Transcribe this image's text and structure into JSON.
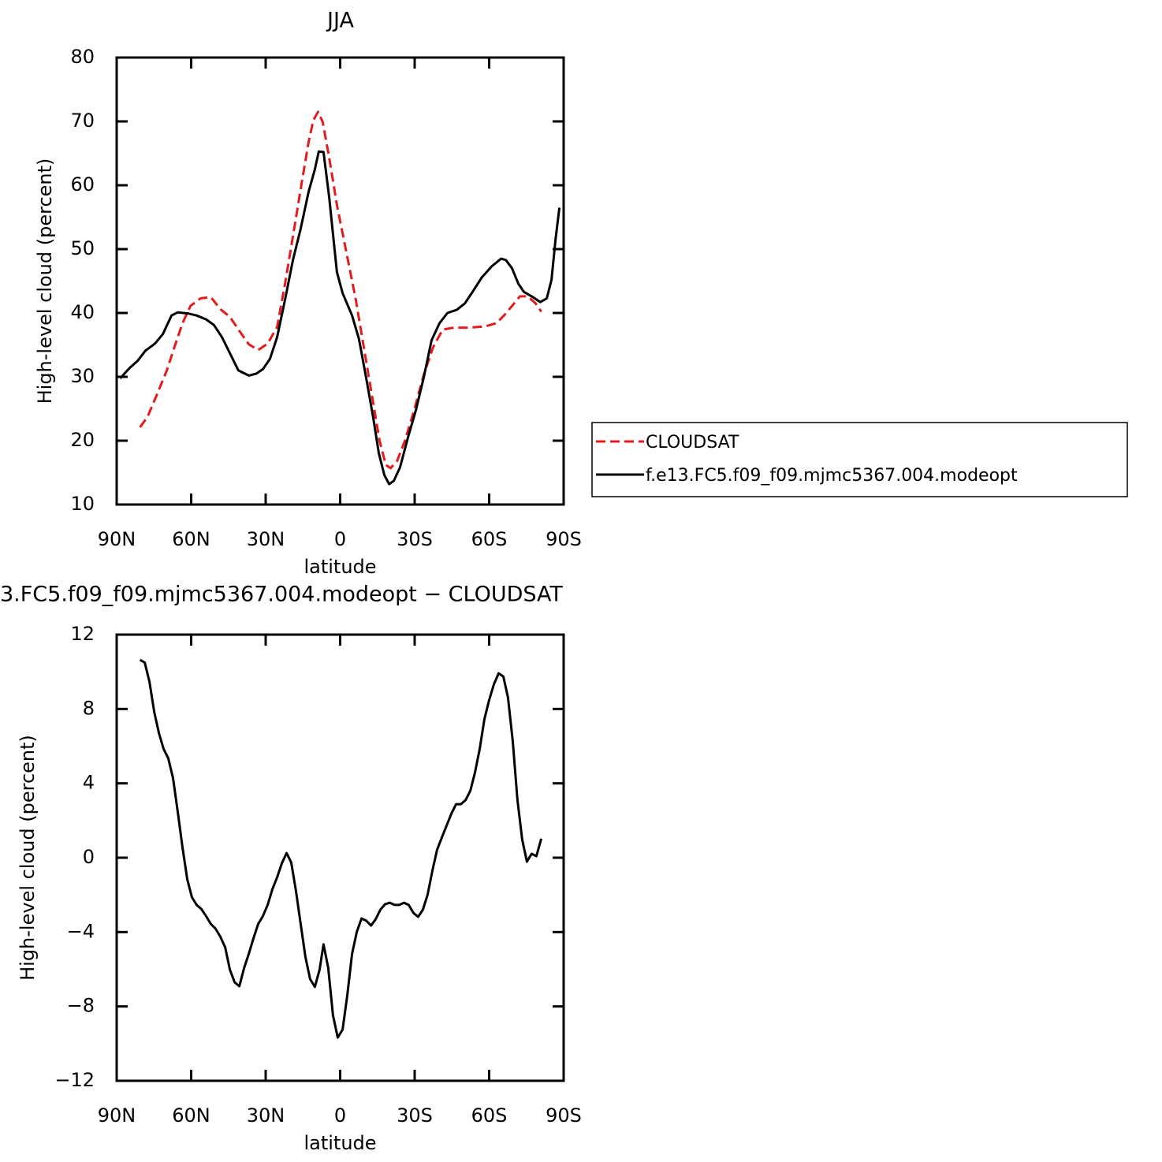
{
  "chart_data": [
    {
      "type": "line",
      "title": "JJA",
      "xlabel": "latitude",
      "ylabel": "High-level cloud (percent)",
      "xlim": [
        90,
        -90
      ],
      "xticks": [
        {
          "value": 90,
          "label": "90N"
        },
        {
          "value": 60,
          "label": "60N"
        },
        {
          "value": 30,
          "label": "30N"
        },
        0,
        {
          "value": -30,
          "label": "30S"
        },
        {
          "value": -60,
          "label": "60S"
        },
        {
          "value": -90,
          "label": "90S"
        }
      ],
      "ylim": [
        10,
        80
      ],
      "yticks": [
        10,
        20,
        30,
        40,
        50,
        60,
        70,
        80
      ],
      "legend": "right",
      "series": [
        {
          "name": "CLOUDSAT",
          "color": "#e41a1c",
          "dashed": true,
          "x": [
            80.6,
            77.5,
            73.7,
            69.8,
            66.7,
            63.5,
            60.3,
            56.2,
            52.1,
            48.3,
            44.4,
            40.6,
            36.8,
            33.0,
            29.2,
            25.4,
            22.2,
            19.0,
            15.9,
            12.7,
            10.8,
            8.9,
            7.0,
            4.4,
            1.3,
            -2.5,
            -6.3,
            -9.5,
            -12.7,
            -15.9,
            -18.4,
            -20.3,
            -22.9,
            -26.0,
            -29.8,
            -33.7,
            -37.5,
            -41.3,
            -45.7,
            -52.1,
            -58.4,
            -62.9,
            -66.0,
            -69.2,
            -72.4,
            -75.6,
            -78.7,
            -81.0
          ],
          "values": [
            22.1,
            23.8,
            27.3,
            31.0,
            34.7,
            38.4,
            41.1,
            42.3,
            42.5,
            40.6,
            39.4,
            37.2,
            35.1,
            34.2,
            35.2,
            37.8,
            44.6,
            52.0,
            59.4,
            66.8,
            70.2,
            71.5,
            69.9,
            64.3,
            56.9,
            49.5,
            42.1,
            34.7,
            27.3,
            19.9,
            16.2,
            15.7,
            16.8,
            19.9,
            24.8,
            30.4,
            34.7,
            37.4,
            37.7,
            37.7,
            37.9,
            38.4,
            39.6,
            41.1,
            42.6,
            42.6,
            41.5,
            40.2
          ]
        },
        {
          "name": "f.e13.FC5.f09_f09.mjmc5367.004.modeopt",
          "color": "#000000",
          "dashed": false,
          "x": [
            88.6,
            84.8,
            81.6,
            78.4,
            74.6,
            71.4,
            67.9,
            65.4,
            61.0,
            57.8,
            54.0,
            50.8,
            47.6,
            44.4,
            41.0,
            36.8,
            33.7,
            31.1,
            28.3,
            25.4,
            22.2,
            19.0,
            15.9,
            12.7,
            10.2,
            8.6,
            6.7,
            4.4,
            1.3,
            -1.0,
            -4.8,
            -7.6,
            -10.5,
            -13.3,
            -15.6,
            -17.8,
            -19.7,
            -21.6,
            -24.1,
            -27.3,
            -30.5,
            -33.7,
            -36.8,
            -40.0,
            -43.2,
            -47.0,
            -50.2,
            -53.3,
            -57.1,
            -61.0,
            -64.8,
            -66.7,
            -69.2,
            -71.7,
            -74.0,
            -77.1,
            -80.6,
            -83.2,
            -85.1,
            -86.7,
            -88.3
          ],
          "values": [
            29.75,
            31.4,
            32.5,
            34.1,
            35.2,
            36.7,
            39.6,
            40.1,
            39.9,
            39.6,
            39.0,
            38.1,
            36.2,
            33.7,
            31.0,
            30.2,
            30.5,
            31.2,
            32.8,
            36.2,
            42.1,
            48.3,
            53.2,
            59.0,
            62.5,
            65.3,
            65.2,
            58.1,
            46.4,
            43.1,
            39.6,
            35.9,
            29.75,
            23.6,
            18.0,
            14.6,
            13.2,
            13.7,
            15.8,
            20.5,
            24.8,
            30.0,
            35.7,
            38.4,
            40.0,
            40.5,
            41.5,
            43.3,
            45.6,
            47.3,
            48.5,
            48.3,
            47.0,
            44.6,
            43.3,
            42.6,
            41.7,
            42.3,
            45.2,
            51.4,
            56.5
          ]
        }
      ]
    },
    {
      "type": "line",
      "title": "3.FC5.f09_f09.mjmc5367.004.modeopt − CLOUDSAT",
      "xlabel": "latitude",
      "ylabel": "High-level cloud (percent)",
      "xlim": [
        90,
        -90
      ],
      "xticks": [
        {
          "value": 90,
          "label": "90N"
        },
        {
          "value": 60,
          "label": "60N"
        },
        {
          "value": 30,
          "label": "30N"
        },
        0,
        {
          "value": -30,
          "label": "30S"
        },
        {
          "value": -60,
          "label": "60S"
        },
        {
          "value": -90,
          "label": "90S"
        }
      ],
      "ylim": [
        -12,
        12
      ],
      "yticks": [
        {
          "value": -12,
          "label": "−12"
        },
        {
          "value": -8,
          "label": "−8"
        },
        {
          "value": -4,
          "label": "−4"
        },
        0,
        4,
        8,
        12
      ],
      "series": [
        {
          "color": "#000000",
          "dashed": false,
          "x": [
            80.6,
            78.7,
            76.8,
            74.9,
            73.0,
            71.1,
            69.2,
            67.3,
            65.4,
            63.5,
            61.6,
            59.7,
            57.8,
            55.9,
            54.0,
            52.1,
            50.2,
            48.3,
            46.3,
            44.4,
            42.5,
            40.6,
            38.7,
            36.8,
            34.9,
            33.0,
            31.1,
            29.2,
            27.3,
            25.4,
            23.5,
            21.6,
            19.7,
            17.8,
            15.9,
            14.0,
            12.1,
            10.2,
            8.3,
            6.7,
            4.8,
            2.9,
            1.0,
            -1.0,
            -2.9,
            -4.8,
            -6.7,
            -8.6,
            -10.5,
            -12.4,
            -14.3,
            -16.2,
            -18.1,
            -20.0,
            -21.9,
            -23.8,
            -25.7,
            -27.6,
            -29.5,
            -31.4,
            -33.3,
            -35.2,
            -37.1,
            -39.0,
            -41.0,
            -42.9,
            -44.8,
            -46.7,
            -48.6,
            -50.5,
            -52.4,
            -54.3,
            -56.2,
            -58.1,
            -60.0,
            -61.9,
            -63.8,
            -65.7,
            -67.6,
            -69.5,
            -71.4,
            -73.3,
            -75.2,
            -77.1,
            -79.0,
            -81.0
          ],
          "values": [
            10.64,
            10.5,
            9.46,
            7.85,
            6.7,
            5.85,
            5.34,
            4.28,
            2.46,
            0.55,
            -1.15,
            -2.12,
            -2.54,
            -2.76,
            -3.14,
            -3.56,
            -3.82,
            -4.24,
            -4.83,
            -6.02,
            -6.7,
            -6.91,
            -5.94,
            -5.17,
            -4.33,
            -3.56,
            -3.14,
            -2.54,
            -1.7,
            -1.06,
            -0.3,
            0.25,
            -0.25,
            -1.78,
            -3.56,
            -5.34,
            -6.53,
            -6.95,
            -6.02,
            -4.66,
            -5.94,
            -8.48,
            -9.67,
            -9.25,
            -7.38,
            -5.17,
            -3.99,
            -3.27,
            -3.39,
            -3.65,
            -3.31,
            -2.8,
            -2.5,
            -2.42,
            -2.54,
            -2.54,
            -2.42,
            -2.54,
            -2.97,
            -3.18,
            -2.8,
            -1.99,
            -0.72,
            0.42,
            1.1,
            1.74,
            2.37,
            2.88,
            2.88,
            3.1,
            3.6,
            4.58,
            5.85,
            7.46,
            8.48,
            9.33,
            9.92,
            9.75,
            8.61,
            6.28,
            3.1,
            0.98,
            -0.21,
            0.21,
            0.08,
            1.02
          ]
        }
      ]
    }
  ]
}
